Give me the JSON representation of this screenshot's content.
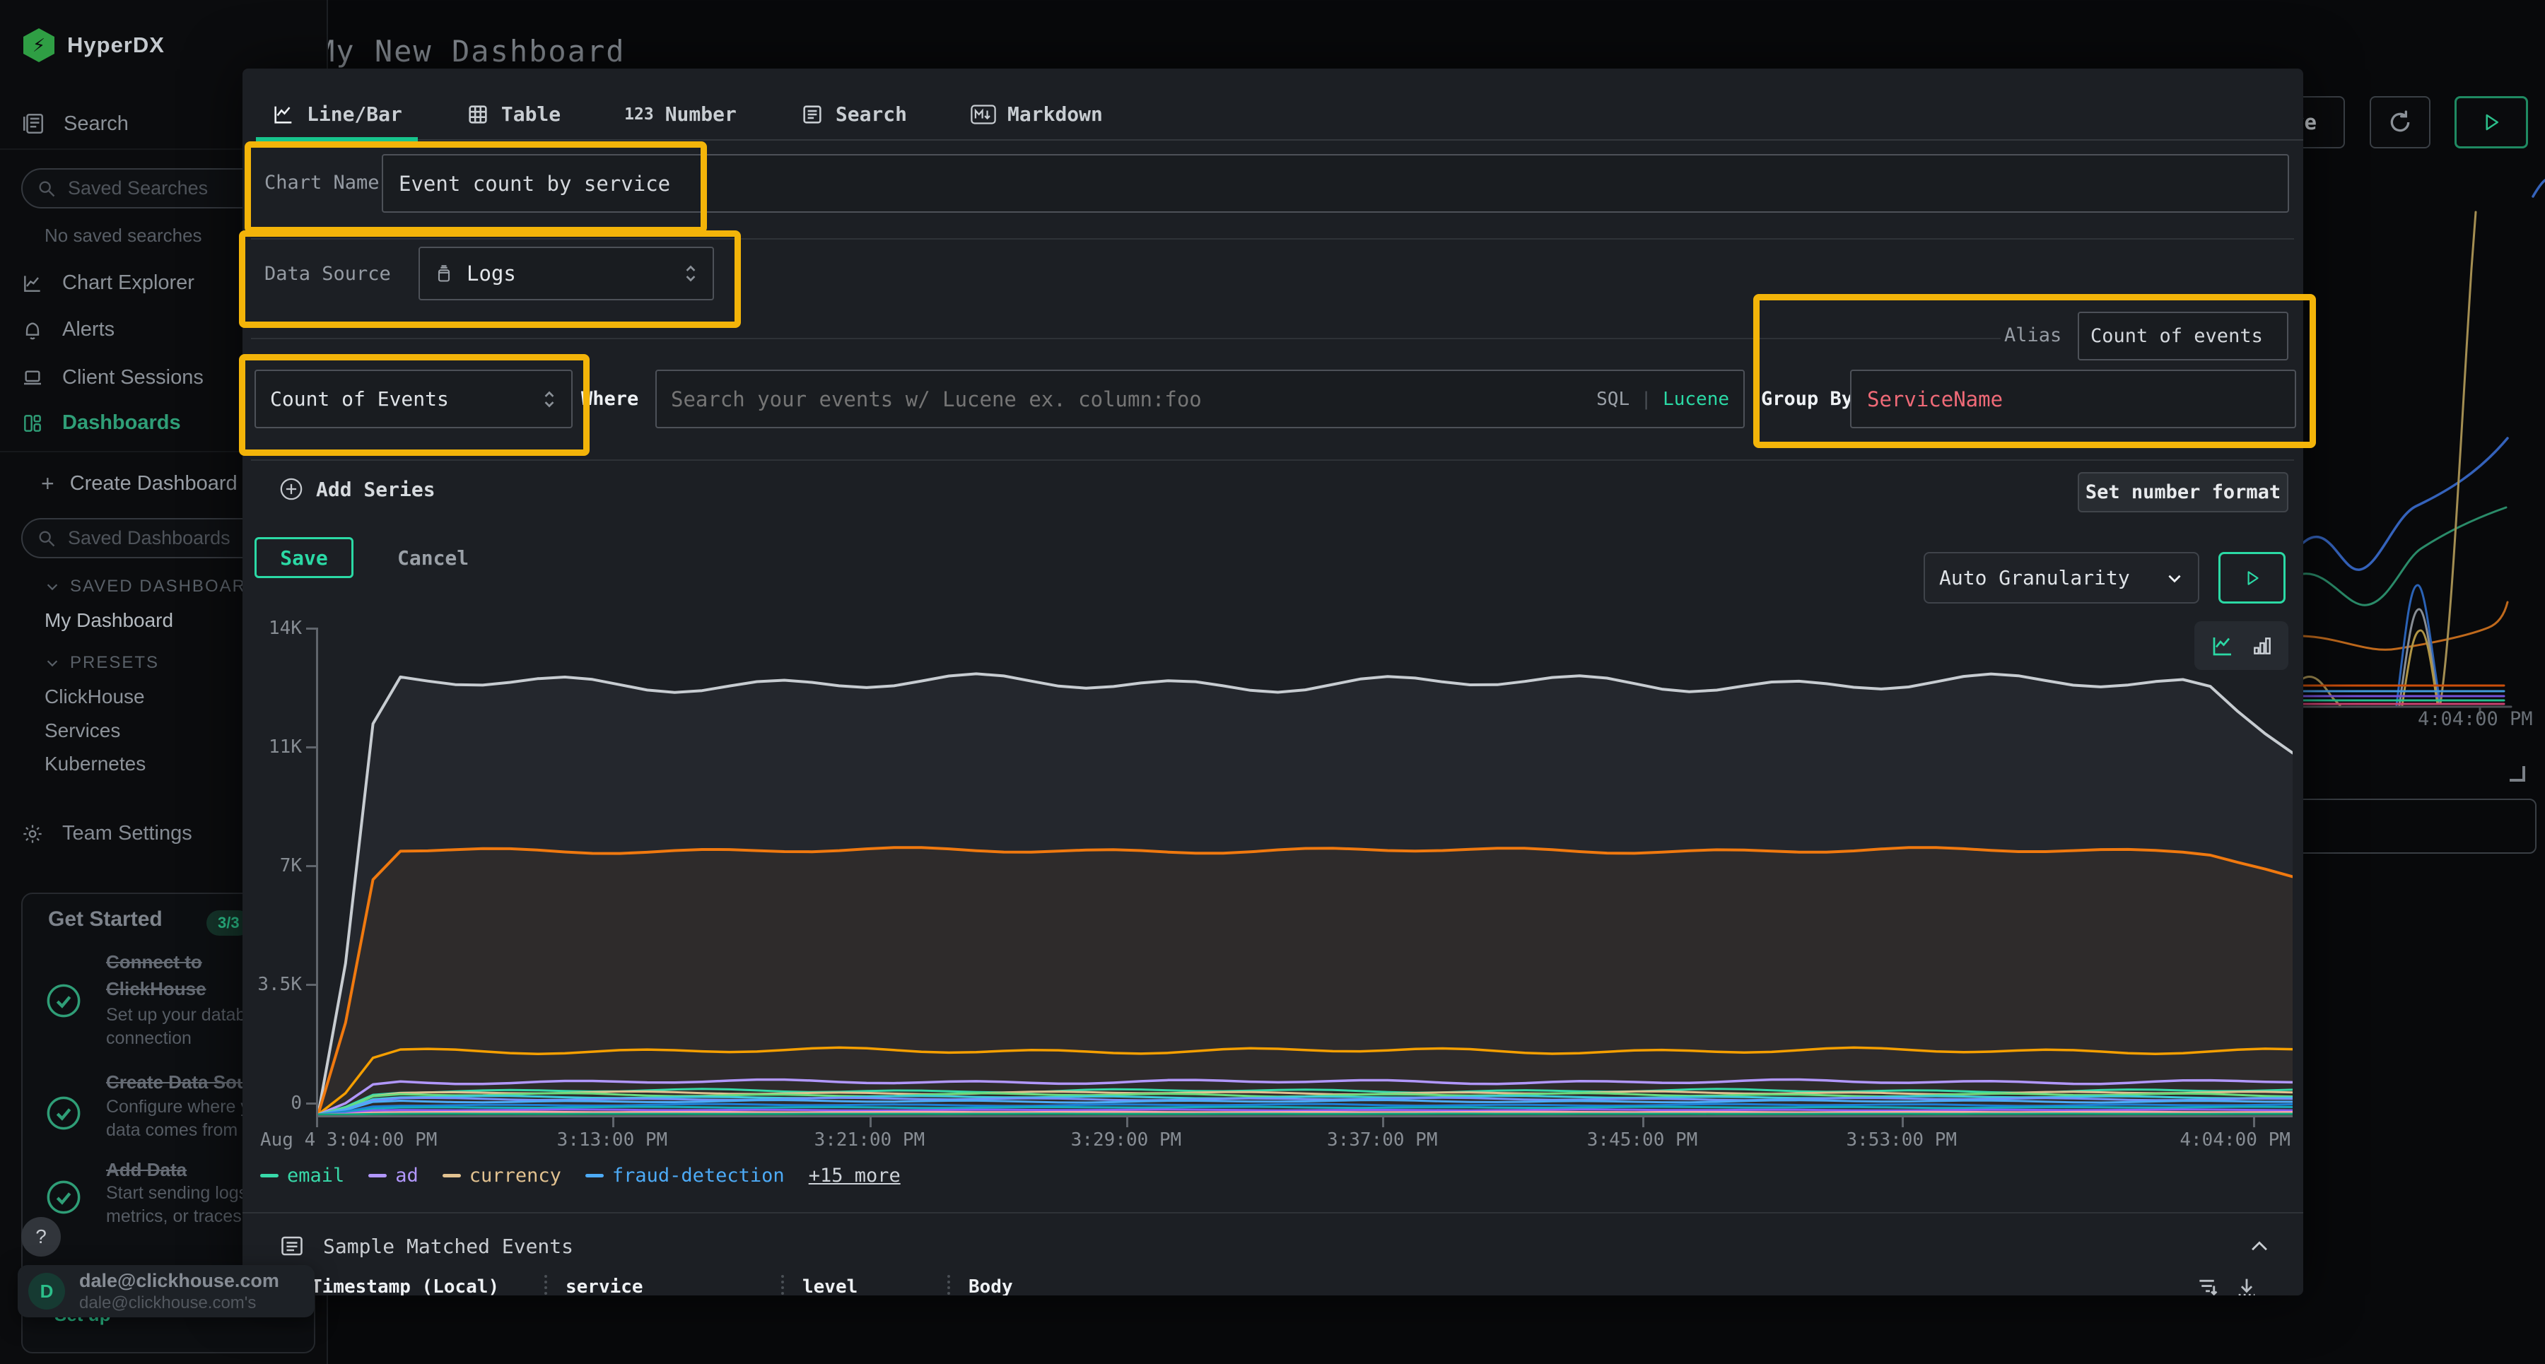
{
  "app": {
    "accent_teal": "#2bd9a5",
    "highlight_yellow": "#f3b409",
    "brand_green": "#2f9e77"
  },
  "header": {
    "title": "My New Dashboard",
    "save": "Save"
  },
  "sidebar": {
    "brand": "HyperDX",
    "search": "Search",
    "saved_searches_placeholder": "Saved Searches",
    "no_saved_searches": "No saved searches",
    "chart_explorer": "Chart Explorer",
    "alerts": "Alerts",
    "client_sessions": "Client Sessions",
    "dashboards": "Dashboards",
    "create_dashboard": "Create Dashboard",
    "saved_dashboards_placeholder": "Saved Dashboards",
    "saved_dashboards_section": "SAVED DASHBOARDS",
    "my_dashboard": "My Dashboard",
    "presets_section": "PRESETS",
    "preset_items": [
      "ClickHouse",
      "Services",
      "Kubernetes"
    ],
    "team_settings": "Team Settings"
  },
  "get_started": {
    "title": "Get Started",
    "badge": "3/3",
    "items": [
      {
        "title": "Connect to ClickHouse",
        "desc": "Set up your database connection"
      },
      {
        "title": "Create Data Source",
        "desc": "Configure where your data comes from"
      },
      {
        "title": "Add Data",
        "desc": "Start sending logs, metrics, or traces"
      }
    ]
  },
  "user": {
    "initial": "D",
    "email": "dale@clickhouse.com",
    "email_note": "dale@clickhouse.com's",
    "help": "?",
    "partial_link": "Set up"
  },
  "modal": {
    "tabs": [
      {
        "label": "Line/Bar"
      },
      {
        "label": "Table"
      },
      {
        "label": "Number",
        "badge": "123"
      },
      {
        "label": "Search"
      },
      {
        "label": "Markdown"
      }
    ],
    "chart_name_label": "Chart Name",
    "chart_name_value": "Event count by service",
    "data_source_label": "Data Source",
    "data_source_value": "Logs",
    "aggregation_value": "Count of Events",
    "where_label": "Where",
    "where_placeholder": "Search your events w/ Lucene ex. column:foo",
    "sql_toggle": "SQL",
    "lucene_toggle": "Lucene",
    "alias_label": "Alias",
    "alias_value": "Count of events",
    "group_by_label": "Group By",
    "group_by_value": "ServiceName",
    "add_series": "Add Series",
    "set_number_format": "Set number format",
    "save": "Save",
    "cancel": "Cancel",
    "granularity": "Auto Granularity",
    "sample_events_title": "Sample Matched Events",
    "table_columns": [
      "Timestamp (Local)",
      "service",
      "level",
      "Body"
    ]
  },
  "background": {
    "time_label": "4:04:00 PM"
  },
  "chart_data": {
    "type": "line",
    "title": "Event count by service",
    "x": {
      "tick_labels": [
        "Aug 4 3:04:00 PM",
        "3:13:00 PM",
        "3:21:00 PM",
        "3:29:00 PM",
        "3:37:00 PM",
        "3:45:00 PM",
        "3:53:00 PM",
        "4:04:00 PM"
      ],
      "tick_ratios": [
        0,
        0.15,
        0.2803,
        0.4103,
        0.54,
        0.6717,
        0.803,
        0.981
      ]
    },
    "y": {
      "tick_labels": [
        "0",
        "3.5K",
        "7K",
        "11K",
        "14K"
      ],
      "max": 14000
    },
    "legend": [
      {
        "label": "email",
        "color": "#38d9a9"
      },
      {
        "label": "ad",
        "color": "#b197fc"
      },
      {
        "label": "currency",
        "color": "#e2c290"
      },
      {
        "label": "fraud-detection",
        "color": "#4dabf7"
      }
    ],
    "legend_more": "+15 more",
    "series": [
      {
        "name": "unlabeled-gray",
        "color": "#c7ccd1",
        "plateau": 12400,
        "end": 10400,
        "amp": 0.022,
        "width": 4,
        "fill": true
      },
      {
        "name": "unlabeled-orange",
        "color": "#f0790f",
        "plateau": 7600,
        "end": 6850,
        "amp": 0.012,
        "width": 4,
        "fill": true
      },
      {
        "name": "unlabeled-orange-2",
        "color": "#f59f00",
        "plateau": 1850,
        "amp": 0.05,
        "width": 3.5
      },
      {
        "name": "ad",
        "color": "#b197fc",
        "plateau": 960,
        "amp": 0.07,
        "width": 3.5
      },
      {
        "name": "email",
        "color": "#38d9a9",
        "plateau": 700,
        "amp": 0.08,
        "width": 3
      },
      {
        "name": "currency",
        "color": "#e2c290",
        "plateau": 640,
        "amp": 0.07,
        "width": 3
      },
      {
        "name": "unlabeled-green",
        "color": "#69db7c",
        "plateau": 585,
        "amp": 0.09,
        "width": 3
      },
      {
        "name": "unlabeled-cyan",
        "color": "#3bc9db",
        "plateau": 520,
        "amp": 0.07,
        "width": 3
      },
      {
        "name": "unlabeled-indigo",
        "color": "#748ffc",
        "plateau": 465,
        "amp": 0.08,
        "width": 3
      },
      {
        "name": "fraud-detection",
        "color": "#4dabf7",
        "plateau": 400,
        "amp": 0.09,
        "width": 3
      },
      {
        "name": "unlabeled-blue",
        "color": "#1c7ed6",
        "plateau": 295,
        "amp": 0.1,
        "width": 3
      },
      {
        "name": "unlabeled-teal-dark",
        "color": "#15aabf",
        "plateau": 225,
        "amp": 0.08,
        "width": 3
      },
      {
        "name": "unlabeled-violet",
        "color": "#845ef7",
        "plateau": 150,
        "amp": 0.1,
        "width": 3
      },
      {
        "name": "unlabeled-salmon",
        "color": "#ffa8a8",
        "plateau": 90,
        "amp": 0.08,
        "width": 3
      },
      {
        "name": "unlabeled-sea-green",
        "color": "#0ca678",
        "plateau": 40,
        "amp": 0.06,
        "width": 3
      }
    ],
    "note": "Values estimated from pixels. Every series ramps from 0 at Aug 4 3:04 PM up to its plateau and holds roughly constant until 4:04 PM; the two largest series dip slightly at the right edge."
  }
}
